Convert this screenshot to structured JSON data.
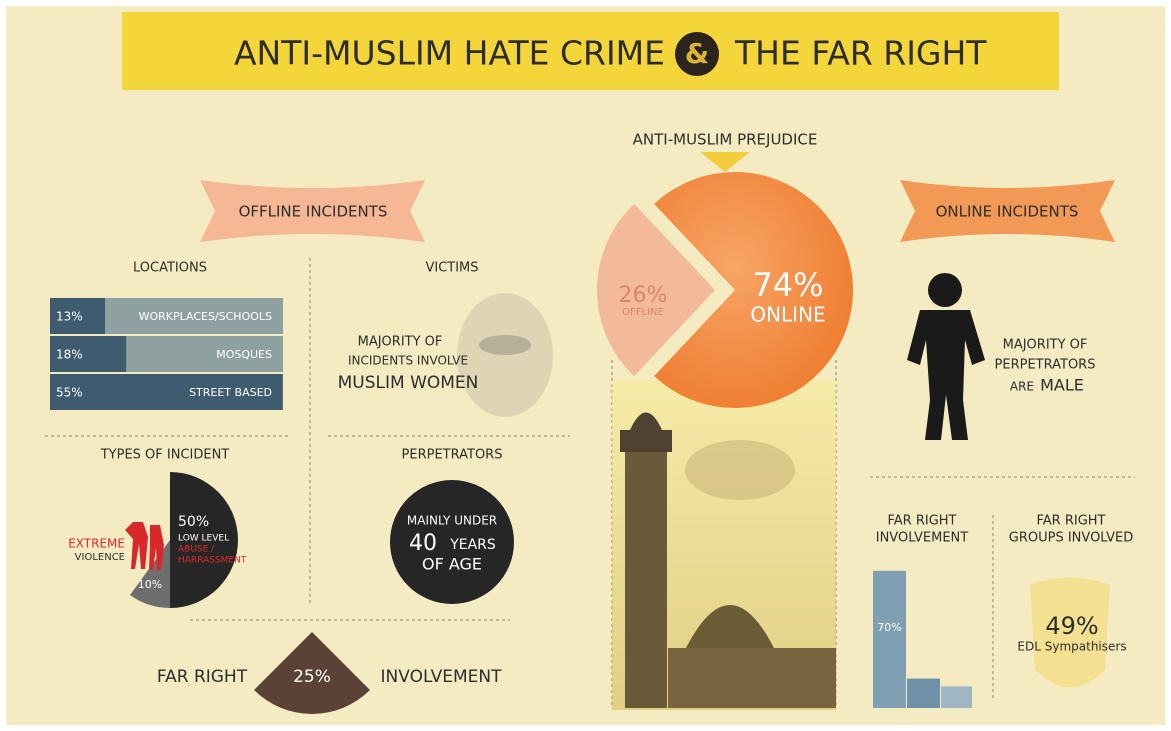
{
  "header": {
    "title_left": "ANTI-MUSLIM HATE CRIME",
    "amp": "&",
    "title_right": "THE FAR RIGHT"
  },
  "prejudice": {
    "label": "ANTI-MUSLIM PREJUDICE",
    "type": "pie",
    "categories": [
      "OFFLINE",
      "ONLINE"
    ],
    "values": [
      26,
      74
    ],
    "value_labels": [
      "26%",
      "74%"
    ],
    "colors": [
      "#f2b99a",
      "#f0843a"
    ]
  },
  "offline": {
    "heading": "OFFLINE INCIDENTS",
    "locations": {
      "title": "LOCATIONS",
      "type": "bar",
      "categories": [
        "WORKPLACES/SCHOOLS",
        "MOSQUES",
        "STREET BASED"
      ],
      "values": [
        13,
        18,
        55
      ],
      "value_labels": [
        "13%",
        "18%",
        "55%"
      ],
      "color": "#3e5b6f"
    },
    "victims": {
      "title": "VICTIMS",
      "lines": [
        "MAJORITY OF",
        "INCIDENTS INVOLVE",
        "MUSLIM WOMEN"
      ]
    },
    "types": {
      "title": "TYPES OF INCIDENT",
      "type": "pie",
      "label_lines": [
        [
          "LOW LEVEL",
          "ABUSE /",
          "HARRASSMENT"
        ],
        [
          "EXTREME",
          "VIOLENCE"
        ]
      ],
      "values": [
        50,
        10
      ],
      "value_labels": [
        "50%",
        "10%"
      ],
      "colors": [
        "#262626",
        "#6e6e6e"
      ]
    },
    "perpetrators": {
      "title": "PERPETRATORS",
      "lines": [
        "MAINLY UNDER",
        "40",
        "YEARS",
        "OF AGE"
      ]
    },
    "far_right": {
      "left": "FAR RIGHT",
      "right": "INVOLVEMENT",
      "value": 25,
      "value_label": "25%",
      "color": "#5a4336"
    }
  },
  "online": {
    "heading": "ONLINE INCIDENTS",
    "perpetrators": {
      "lines": [
        "MAJORITY OF",
        "PERPETRATORS",
        "ARE",
        "MALE"
      ]
    },
    "involvement": {
      "title_lines": [
        "FAR RIGHT",
        "INVOLVEMENT"
      ],
      "type": "bar",
      "values": [
        70,
        15,
        11
      ],
      "value_labels": [
        "70%",
        null,
        null
      ],
      "colors": [
        "#7f9fb3",
        "#6f91a8",
        "#9fb6c4"
      ]
    },
    "groups": {
      "title_lines": [
        "FAR RIGHT",
        "GROUPS INVOLVED"
      ],
      "value": 49,
      "value_label": "49%",
      "caption": "EDL Sympathisers"
    }
  }
}
